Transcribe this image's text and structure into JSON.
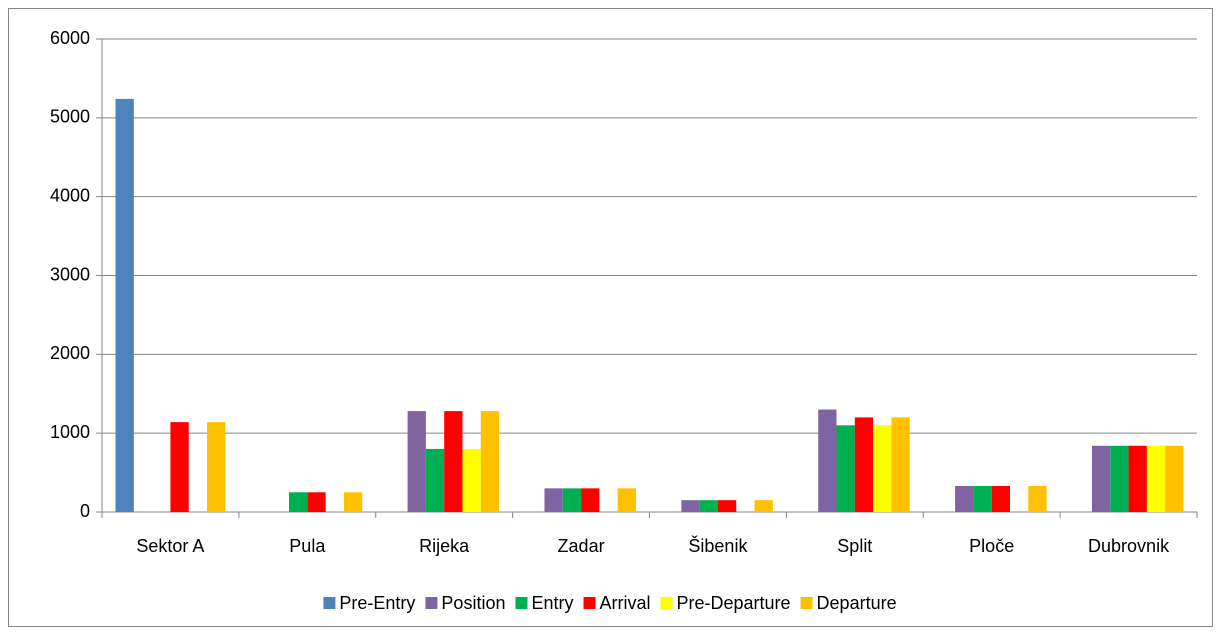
{
  "chart_data": {
    "type": "bar",
    "categories": [
      "Sektor A",
      "Pula",
      "Rijeka",
      "Zadar",
      "Šibenik",
      "Split",
      "Ploče",
      "Dubrovnik"
    ],
    "series": [
      {
        "name": "Pre-Entry",
        "color": "#4f81bd",
        "values": [
          5240,
          null,
          null,
          null,
          null,
          null,
          null,
          null
        ]
      },
      {
        "name": "Position",
        "color": "#8064a2",
        "values": [
          null,
          null,
          1280,
          300,
          150,
          1300,
          330,
          840
        ]
      },
      {
        "name": "Entry",
        "color": "#00b050",
        "values": [
          null,
          250,
          800,
          300,
          150,
          1100,
          330,
          840
        ]
      },
      {
        "name": "Arrival",
        "color": "#ff0000",
        "values": [
          1140,
          250,
          1280,
          300,
          150,
          1200,
          330,
          840
        ]
      },
      {
        "name": "Pre-Departure",
        "color": "#ffff00",
        "values": [
          null,
          null,
          800,
          null,
          null,
          1100,
          null,
          840
        ]
      },
      {
        "name": "Departure",
        "color": "#ffc000",
        "values": [
          1140,
          250,
          1280,
          300,
          150,
          1200,
          330,
          840
        ]
      }
    ],
    "ylim": [
      0,
      6000
    ],
    "yticks": [
      0,
      1000,
      2000,
      3000,
      4000,
      5000,
      6000
    ],
    "grid": true,
    "legend": "bottom"
  }
}
